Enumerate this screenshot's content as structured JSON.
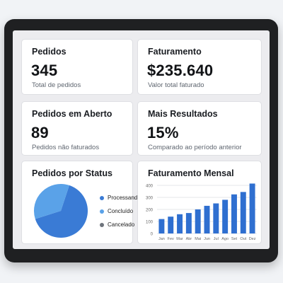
{
  "cards": {
    "pedidos": {
      "title": "Pedidos",
      "value": "345",
      "subtitle": "Total de pedidos"
    },
    "faturamento": {
      "title": "Faturamento",
      "value": "$235.640",
      "subtitle": "Valor total faturado"
    },
    "pedidos_aberto": {
      "title": "Pedidos em Aberto",
      "value": "89",
      "subtitle": "Pedidos não faturados"
    },
    "mais_resultados": {
      "title": "Mais Resultados",
      "value": "15%",
      "subtitle": "Comparado ao período anterior"
    }
  },
  "status_chart": {
    "title": "Pedidos por Status",
    "legend": [
      {
        "label": "Processando",
        "color": "#3a7bd5"
      },
      {
        "label": "Concluído",
        "color": "#5aa2e8"
      },
      {
        "label": "Cancelado",
        "color": "#6e747c"
      }
    ]
  },
  "chart_data": [
    {
      "type": "pie",
      "title": "Pedidos por Status",
      "categories": [
        "Processando",
        "Concluído",
        "Cancelado"
      ],
      "values": [
        65,
        35,
        0
      ],
      "colors": [
        "#3a7bd5",
        "#5aa2e8",
        "#6e747c"
      ]
    },
    {
      "type": "bar",
      "title": "Faturamento Mensal",
      "categories": [
        "Jan",
        "Fev",
        "Mar",
        "Abr",
        "Mai",
        "Jun",
        "Jul",
        "Ago",
        "Set",
        "Out",
        "Dez"
      ],
      "values": [
        120,
        140,
        160,
        170,
        200,
        230,
        250,
        280,
        325,
        345,
        415
      ],
      "ylim": [
        0,
        400
      ],
      "yticks": [
        "0",
        "100",
        "200",
        "300",
        "400"
      ],
      "color": "#2f6fd0",
      "grid": true
    }
  ]
}
